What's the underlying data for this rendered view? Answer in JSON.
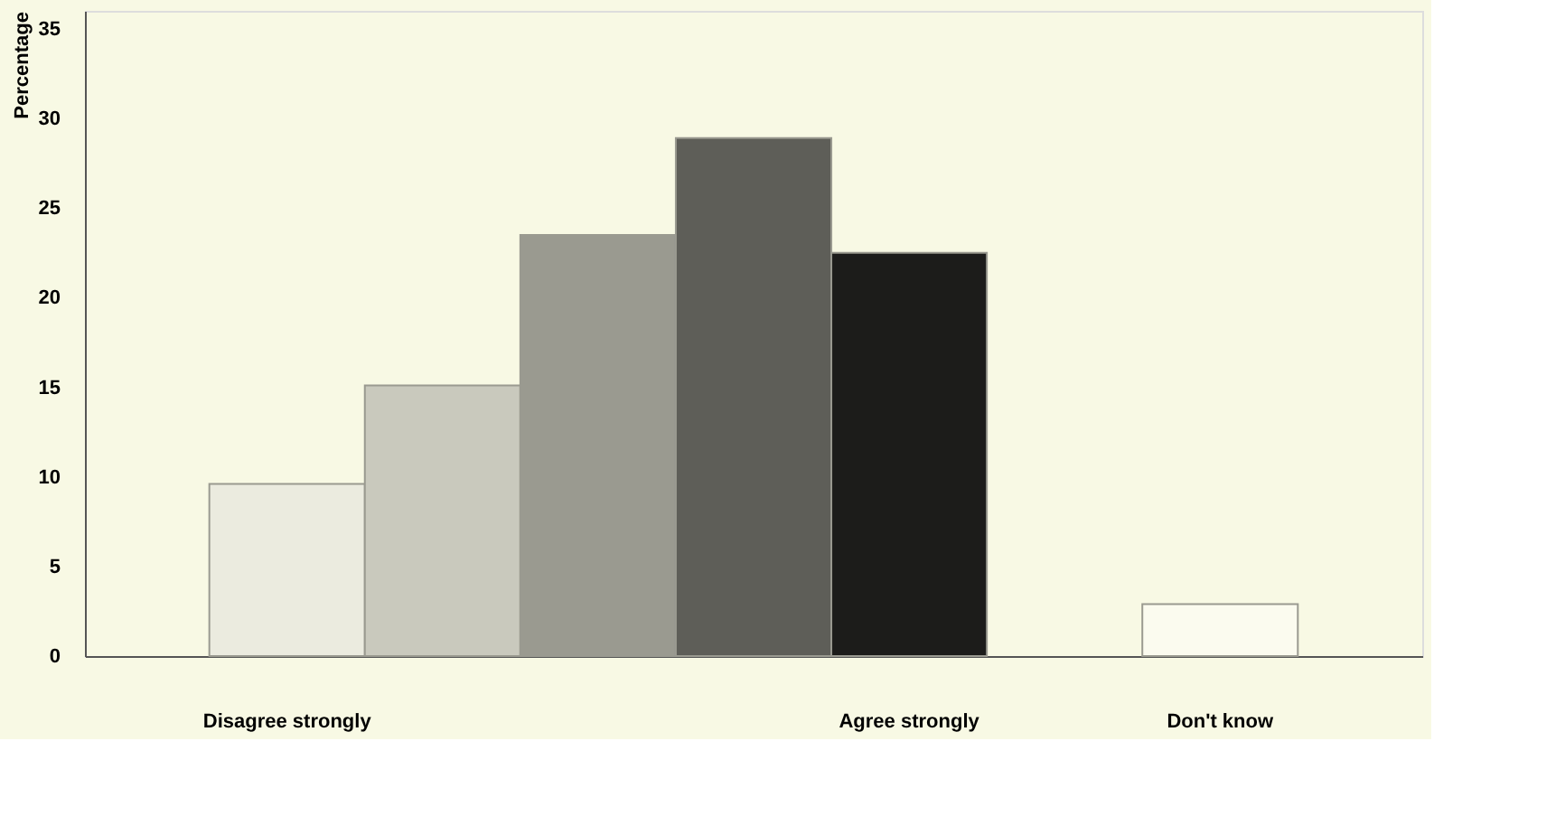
{
  "chart_data": {
    "type": "bar",
    "ylabel": "Percentage",
    "categories": [
      "Disagree strongly",
      null,
      null,
      null,
      "Agree strongly",
      null,
      "Don't know"
    ],
    "values": [
      9.6,
      15.1,
      23.5,
      28.9,
      22.5,
      null,
      2.9
    ],
    "colors": [
      "#ebebdf",
      "#c9c9bd",
      "#9a9a90",
      "#5e5e58",
      "#1c1c1a",
      "#ffffff",
      "#fbfbef"
    ],
    "ylim": [
      0,
      36
    ],
    "yticks": [
      0,
      5,
      10,
      15,
      20,
      25,
      30,
      35
    ],
    "grid": false
  }
}
